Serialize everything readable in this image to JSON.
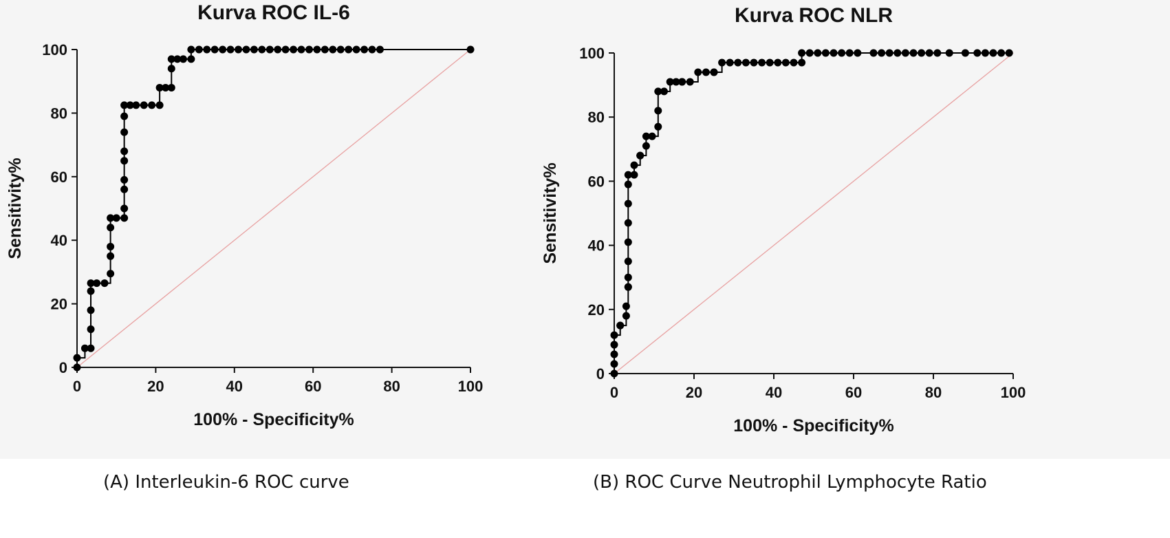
{
  "chart_data": [
    {
      "type": "line",
      "title": "Kurva ROC IL-6",
      "xlabel": "100% - Specificity%",
      "ylabel": "Sensitivity%",
      "xlim": [
        0,
        100
      ],
      "ylim": [
        0,
        100
      ],
      "xticks": [
        0,
        20,
        40,
        60,
        80,
        100
      ],
      "yticks": [
        0,
        20,
        40,
        60,
        80,
        100
      ],
      "caption": "(A) Interleukin-6 ROC curve",
      "colors": {
        "curve": "#000000",
        "reference": "#e8a0a0"
      },
      "grid": false,
      "series": [
        {
          "x": [
            0,
            0,
            2,
            3.5,
            3.5,
            3.5,
            3.5,
            3.5,
            5,
            7,
            8.5,
            8.5,
            8.5,
            8.5,
            8.5,
            10,
            12,
            12,
            12,
            12,
            12,
            12,
            12,
            12,
            12,
            13.5,
            15,
            17,
            19,
            21,
            21,
            22.5,
            24,
            24,
            24,
            25.5,
            27,
            29,
            29,
            31,
            33,
            35,
            37,
            39,
            41,
            43,
            45,
            47,
            49,
            51,
            53,
            55,
            57,
            59,
            61,
            63,
            65,
            67,
            69,
            71,
            73,
            75,
            77,
            100
          ],
          "y": [
            0,
            3,
            6,
            6,
            12,
            18,
            24,
            26.5,
            26.5,
            26.5,
            29.5,
            35,
            38,
            44,
            47,
            47,
            47,
            50,
            56,
            59,
            65,
            68,
            74,
            79,
            82.5,
            82.5,
            82.5,
            82.5,
            82.5,
            82.5,
            88,
            88,
            88,
            94,
            97,
            97,
            97,
            97,
            100,
            100,
            100,
            100,
            100,
            100,
            100,
            100,
            100,
            100,
            100,
            100,
            100,
            100,
            100,
            100,
            100,
            100,
            100,
            100,
            100,
            100,
            100,
            100,
            100,
            100
          ]
        }
      ]
    },
    {
      "type": "line",
      "title": "Kurva ROC NLR",
      "xlabel": "100% - Specificity%",
      "ylabel": "Sensitivity%",
      "xlim": [
        0,
        100
      ],
      "ylim": [
        0,
        100
      ],
      "xticks": [
        0,
        20,
        40,
        60,
        80,
        100
      ],
      "yticks": [
        0,
        20,
        40,
        60,
        80,
        100
      ],
      "caption": "(B) ROC Curve Neutrophil Lymphocyte Ratio",
      "colors": {
        "curve": "#000000",
        "reference": "#e8a0a0"
      },
      "grid": false,
      "series": [
        {
          "x": [
            0,
            0,
            0,
            0,
            0,
            1.5,
            1.5,
            3,
            3,
            3.5,
            3.5,
            3.5,
            3.5,
            3.5,
            3.5,
            3.5,
            3.5,
            3.5,
            5,
            5,
            6.5,
            6.5,
            8,
            8,
            9.5,
            11,
            11,
            11,
            12.5,
            14,
            15.5,
            17,
            17,
            19,
            21,
            23,
            25,
            25,
            27,
            29,
            31,
            33,
            35,
            37,
            39,
            41,
            43,
            45,
            47,
            47,
            49,
            51,
            53,
            55,
            57,
            59,
            61,
            65,
            67,
            69,
            71,
            73,
            75,
            77,
            79,
            81,
            84,
            88,
            91,
            93,
            95,
            97,
            99
          ],
          "y": [
            0,
            3,
            6,
            9,
            12,
            15,
            15,
            18,
            21,
            27,
            27,
            30,
            35,
            41,
            47,
            53,
            59,
            62,
            62,
            65,
            68,
            68,
            71,
            74,
            74,
            77,
            82,
            88,
            88,
            91,
            91,
            91,
            91,
            91,
            94,
            94,
            94,
            94,
            97,
            97,
            97,
            97,
            97,
            97,
            97,
            97,
            97,
            97,
            97,
            100,
            100,
            100,
            100,
            100,
            100,
            100,
            100,
            100,
            100,
            100,
            100,
            100,
            100,
            100,
            100,
            100,
            100,
            100,
            100,
            100,
            100,
            100,
            100
          ]
        }
      ]
    }
  ]
}
